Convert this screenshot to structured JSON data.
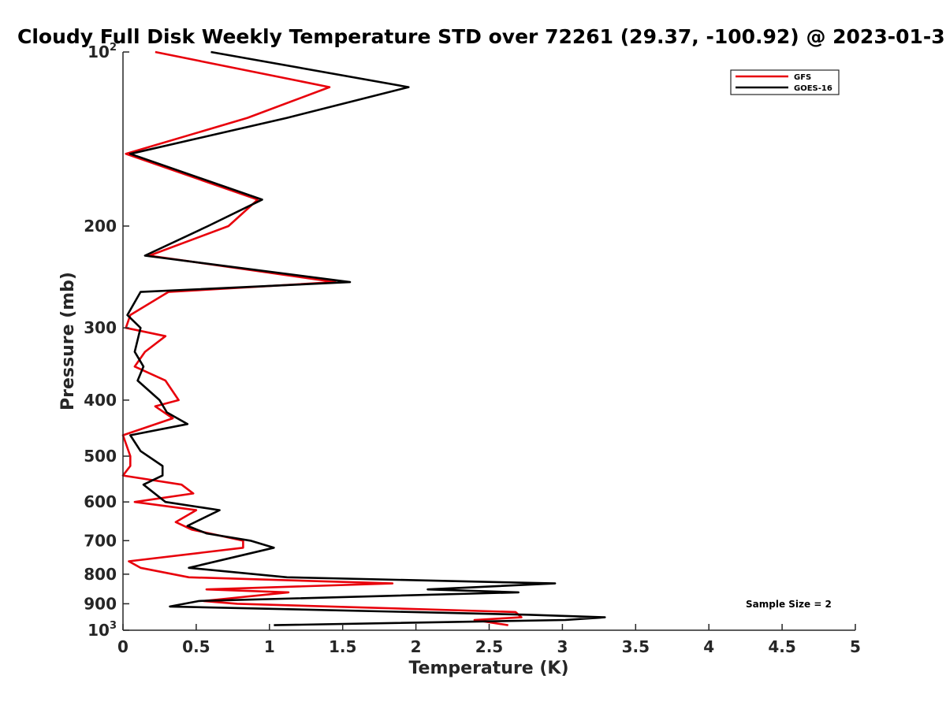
{
  "chart_data": {
    "type": "line",
    "title": "Cloudy Full Disk Weekly Temperature STD over 72261 (29.37, -100.92) @ 2023-01-3",
    "xlabel": "Temperature (K)",
    "ylabel": "Pressure (mb)",
    "xlim": [
      0,
      5
    ],
    "ylim": [
      1000,
      100
    ],
    "y_scale": "log",
    "y_reversed": true,
    "x_ticks": [
      {
        "value": 0,
        "label": "0"
      },
      {
        "value": 0.5,
        "label": "0.5"
      },
      {
        "value": 1,
        "label": "1"
      },
      {
        "value": 1.5,
        "label": "1.5"
      },
      {
        "value": 2,
        "label": "2"
      },
      {
        "value": 2.5,
        "label": "2.5"
      },
      {
        "value": 3,
        "label": "3"
      },
      {
        "value": 3.5,
        "label": "3.5"
      },
      {
        "value": 4,
        "label": "4"
      },
      {
        "value": 4.5,
        "label": "4.5"
      },
      {
        "value": 5,
        "label": "5"
      }
    ],
    "y_ticks": [
      {
        "value": 100,
        "base": "10",
        "exp": "2"
      },
      {
        "value": 200,
        "base": "200",
        "exp": ""
      },
      {
        "value": 300,
        "base": "300",
        "exp": ""
      },
      {
        "value": 400,
        "base": "400",
        "exp": ""
      },
      {
        "value": 500,
        "base": "500",
        "exp": ""
      },
      {
        "value": 600,
        "base": "600",
        "exp": ""
      },
      {
        "value": 700,
        "base": "700",
        "exp": ""
      },
      {
        "value": 800,
        "base": "800",
        "exp": ""
      },
      {
        "value": 900,
        "base": "900",
        "exp": ""
      },
      {
        "value": 1000,
        "base": "10",
        "exp": "3"
      }
    ],
    "legend_position": "top-right",
    "grid": false,
    "annotation": "Sample Size = 2",
    "series": [
      {
        "name": "GFS",
        "color": "#e8000b",
        "points": [
          [
            0.22,
            100
          ],
          [
            1.41,
            115
          ],
          [
            0.85,
            130
          ],
          [
            0.02,
            150
          ],
          [
            0.92,
            180
          ],
          [
            0.72,
            200
          ],
          [
            0.18,
            225
          ],
          [
            1.45,
            250
          ],
          [
            0.31,
            260
          ],
          [
            0.05,
            285
          ],
          [
            0.02,
            300
          ],
          [
            0.29,
            310
          ],
          [
            0.15,
            330
          ],
          [
            0.08,
            350
          ],
          [
            0.29,
            370
          ],
          [
            0.38,
            400
          ],
          [
            0.22,
            410
          ],
          [
            0.34,
            430
          ],
          [
            0.0,
            460
          ],
          [
            0.05,
            500
          ],
          [
            0.05,
            520
          ],
          [
            0.0,
            540
          ],
          [
            0.4,
            560
          ],
          [
            0.48,
            580
          ],
          [
            0.08,
            600
          ],
          [
            0.5,
            620
          ],
          [
            0.36,
            650
          ],
          [
            0.47,
            670
          ],
          [
            0.82,
            700
          ],
          [
            0.82,
            720
          ],
          [
            0.04,
            760
          ],
          [
            0.12,
            780
          ],
          [
            0.45,
            810
          ],
          [
            1.84,
            830
          ],
          [
            0.57,
            850
          ],
          [
            1.13,
            860
          ],
          [
            0.55,
            890
          ],
          [
            0.78,
            900
          ],
          [
            2.68,
            930
          ],
          [
            2.72,
            950
          ],
          [
            2.4,
            960
          ],
          [
            2.63,
            980
          ]
        ]
      },
      {
        "name": "GOES-16",
        "color": "#000000",
        "points": [
          [
            0.6,
            100
          ],
          [
            1.95,
            115
          ],
          [
            1.12,
            130
          ],
          [
            0.05,
            150
          ],
          [
            0.95,
            180
          ],
          [
            0.58,
            200
          ],
          [
            0.15,
            225
          ],
          [
            1.55,
            250
          ],
          [
            0.12,
            260
          ],
          [
            0.03,
            285
          ],
          [
            0.12,
            300
          ],
          [
            0.08,
            330
          ],
          [
            0.14,
            350
          ],
          [
            0.1,
            370
          ],
          [
            0.25,
            400
          ],
          [
            0.3,
            420
          ],
          [
            0.44,
            440
          ],
          [
            0.05,
            460
          ],
          [
            0.12,
            490
          ],
          [
            0.27,
            520
          ],
          [
            0.27,
            540
          ],
          [
            0.14,
            560
          ],
          [
            0.29,
            600
          ],
          [
            0.66,
            620
          ],
          [
            0.44,
            660
          ],
          [
            0.57,
            680
          ],
          [
            0.87,
            700
          ],
          [
            1.03,
            720
          ],
          [
            0.45,
            780
          ],
          [
            1.12,
            810
          ],
          [
            2.95,
            830
          ],
          [
            2.08,
            850
          ],
          [
            2.7,
            860
          ],
          [
            0.52,
            890
          ],
          [
            0.32,
            910
          ],
          [
            2.76,
            940
          ],
          [
            3.29,
            950
          ],
          [
            3.02,
            960
          ],
          [
            1.03,
            980
          ]
        ]
      }
    ]
  }
}
